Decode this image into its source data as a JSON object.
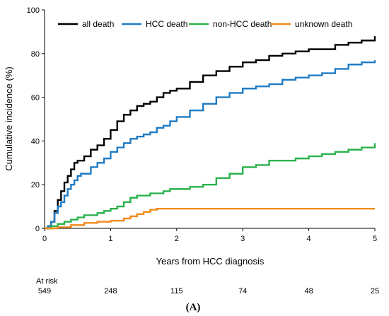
{
  "chart_data": {
    "type": "line",
    "title": "",
    "xlabel": "Years from HCC diagnosis",
    "ylabel": "Cumulative incidence (%)",
    "xlim": [
      0,
      5
    ],
    "ylim": [
      0,
      100
    ],
    "xticks": [
      0,
      1,
      2,
      3,
      4,
      5
    ],
    "yticks": [
      0,
      20,
      40,
      60,
      80,
      100
    ],
    "legend_position": "top",
    "grid": false,
    "step": true,
    "series": [
      {
        "name": "all death",
        "color": "#000000",
        "x": [
          0,
          0.05,
          0.1,
          0.15,
          0.2,
          0.25,
          0.3,
          0.35,
          0.4,
          0.45,
          0.5,
          0.55,
          0.6,
          0.7,
          0.8,
          0.9,
          1.0,
          1.1,
          1.2,
          1.3,
          1.4,
          1.5,
          1.6,
          1.7,
          1.8,
          1.9,
          2.0,
          2.2,
          2.4,
          2.6,
          2.8,
          3.0,
          3.2,
          3.4,
          3.6,
          3.8,
          4.0,
          4.2,
          4.4,
          4.6,
          4.8,
          5.0
        ],
        "y": [
          0,
          1,
          3,
          8,
          13,
          17,
          21,
          24,
          27,
          30,
          31,
          31,
          33,
          36,
          38,
          41,
          45,
          49,
          52,
          54,
          56,
          57,
          58,
          60,
          62,
          63,
          64,
          67,
          70,
          72,
          74,
          76,
          77,
          79,
          80,
          81,
          82,
          82,
          84,
          85,
          86,
          88
        ]
      },
      {
        "name": "HCC death",
        "color": "#1f7bc4",
        "x": [
          0,
          0.05,
          0.1,
          0.15,
          0.2,
          0.25,
          0.3,
          0.35,
          0.4,
          0.45,
          0.5,
          0.55,
          0.6,
          0.7,
          0.8,
          0.9,
          1.0,
          1.1,
          1.2,
          1.3,
          1.4,
          1.5,
          1.6,
          1.7,
          1.8,
          1.9,
          2.0,
          2.2,
          2.4,
          2.6,
          2.8,
          3.0,
          3.2,
          3.4,
          3.6,
          3.8,
          4.0,
          4.2,
          4.4,
          4.6,
          4.8,
          5.0
        ],
        "y": [
          0,
          1,
          3,
          7,
          10,
          12,
          15,
          18,
          20,
          22,
          24,
          25,
          25,
          28,
          30,
          32,
          35,
          37,
          39,
          41,
          42,
          43,
          44,
          46,
          47,
          49,
          51,
          54,
          57,
          60,
          62,
          64,
          65,
          66,
          68,
          69,
          70,
          71,
          73,
          75,
          76,
          77
        ]
      },
      {
        "name": "non-HCC death",
        "color": "#2ab24c",
        "x": [
          0,
          0.1,
          0.2,
          0.3,
          0.4,
          0.5,
          0.6,
          0.7,
          0.8,
          0.9,
          1.0,
          1.1,
          1.2,
          1.3,
          1.4,
          1.5,
          1.6,
          1.7,
          1.8,
          1.9,
          2.0,
          2.2,
          2.4,
          2.6,
          2.8,
          3.0,
          3.2,
          3.4,
          3.6,
          3.8,
          4.0,
          4.2,
          4.4,
          4.6,
          4.8,
          5.0
        ],
        "y": [
          0,
          1,
          2,
          3,
          4,
          5,
          6,
          6,
          7,
          8,
          9,
          10,
          12,
          14,
          15,
          15,
          16,
          16,
          17,
          18,
          18,
          19,
          20,
          23,
          25,
          28,
          29,
          31,
          31,
          32,
          33,
          34,
          35,
          36,
          37,
          39
        ]
      },
      {
        "name": "unknown death",
        "color": "#f28a1e",
        "x": [
          0,
          0.2,
          0.4,
          0.6,
          0.8,
          1.0,
          1.1,
          1.2,
          1.3,
          1.4,
          1.5,
          1.6,
          1.7,
          2.0,
          3.0,
          4.0,
          5.0
        ],
        "y": [
          0,
          0.5,
          1.5,
          2.5,
          3,
          3.5,
          3.5,
          4.5,
          5.5,
          6.5,
          7.5,
          8.5,
          9,
          9,
          9,
          9,
          9
        ]
      }
    ],
    "at_risk": {
      "label": "At risk",
      "values": [
        549,
        248,
        115,
        74,
        48,
        25
      ]
    }
  },
  "panel_label": "(A)"
}
